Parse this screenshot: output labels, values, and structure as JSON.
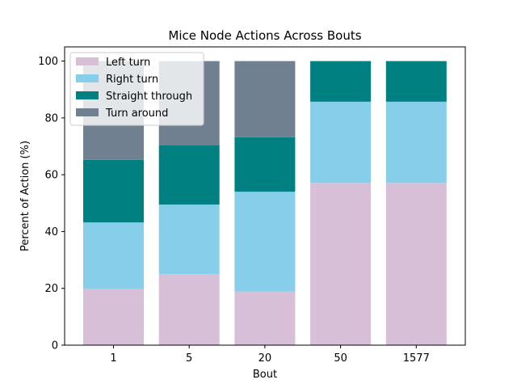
{
  "chart_data": {
    "type": "bar",
    "stacked": true,
    "title": "Mice Node Actions Across Bouts",
    "xlabel": "Bout",
    "ylabel": "Percent of Action (%)",
    "ylim": [
      0,
      105
    ],
    "yticks": [
      0,
      20,
      40,
      60,
      80,
      100
    ],
    "grid": false,
    "legend_position": "top-left",
    "categories": [
      "1",
      "5",
      "20",
      "50",
      "1577"
    ],
    "series": [
      {
        "name": "Left turn",
        "color": "#d8bfd8",
        "values": [
          19.8,
          25.0,
          18.9,
          57.1,
          57.1
        ]
      },
      {
        "name": "Right turn",
        "color": "#87ceeb",
        "values": [
          23.4,
          24.5,
          35.1,
          28.6,
          28.6
        ]
      },
      {
        "name": "Straight through",
        "color": "#008080",
        "values": [
          22.0,
          21.0,
          19.2,
          14.3,
          14.3
        ]
      },
      {
        "name": "Turn around",
        "color": "#708090",
        "values": [
          34.8,
          29.5,
          26.8,
          0.0,
          0.0
        ]
      }
    ]
  }
}
